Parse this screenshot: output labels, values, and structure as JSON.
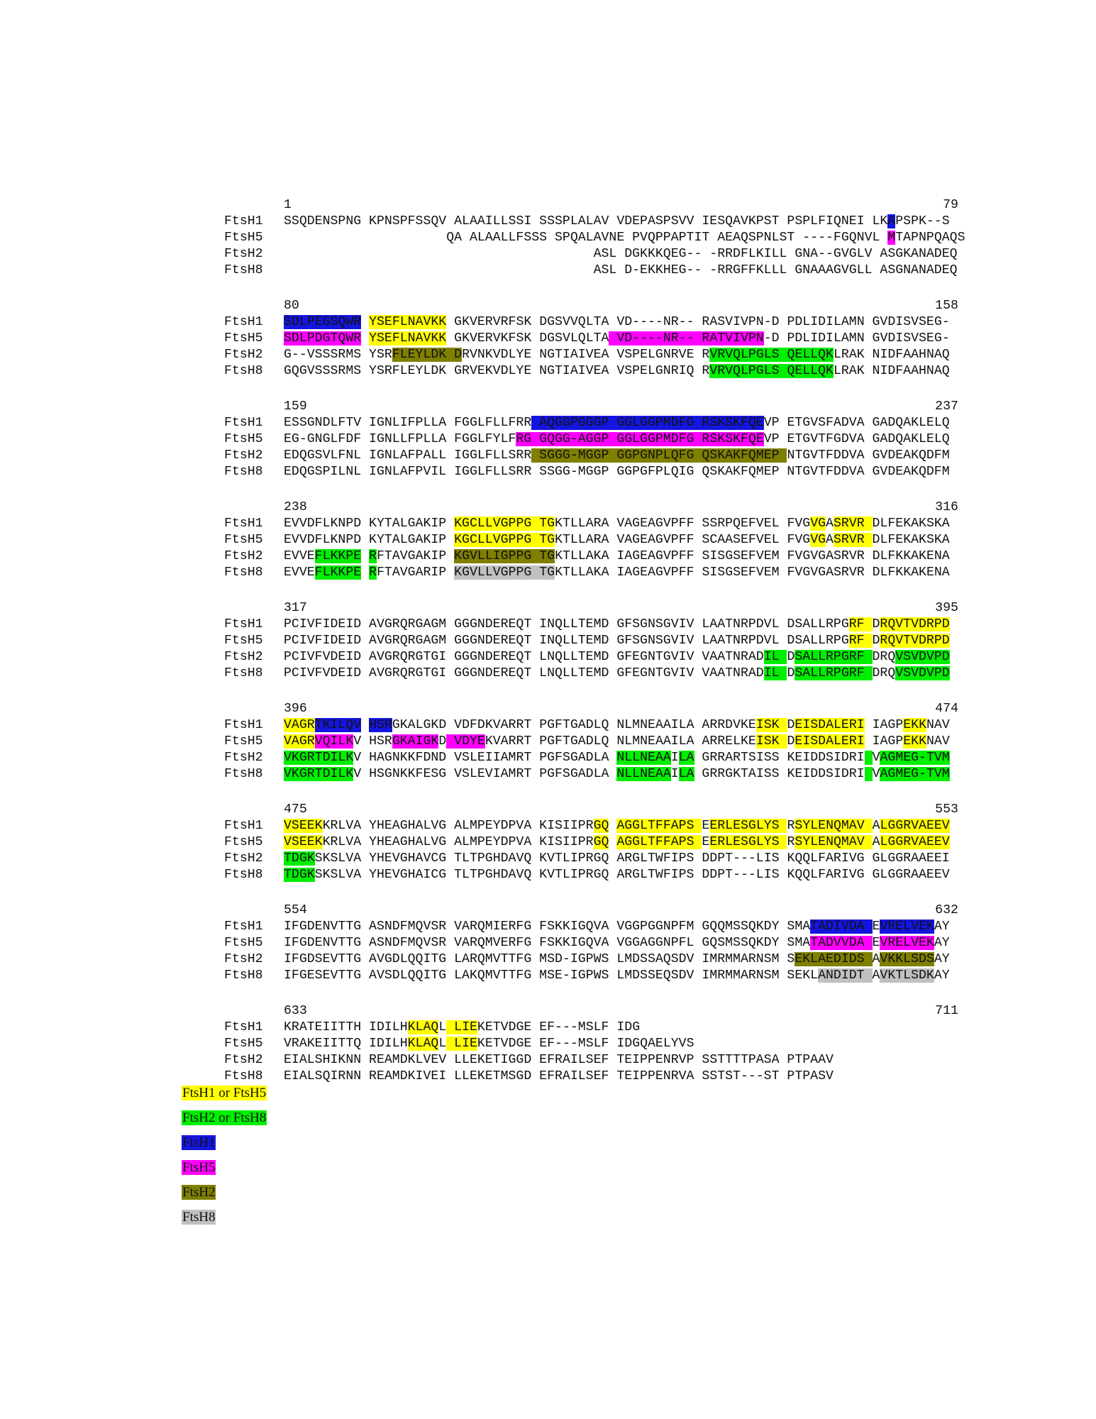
{
  "colors": {
    "h15": "#ffff00",
    "h28": "#00ee00",
    "h1": "#1515e0",
    "h5": "#ff00ff",
    "h2": "#7f7f00",
    "h8": "#c0c0c0"
  },
  "blocks": [
    {
      "start": "1",
      "end": "79",
      "rows": [
        {
          "name": "FtsH1",
          "seq": "SSQDENSPNG KPNSPFSSQV ALAAILLSSI SSSPLALAV VDEPASPSVV IESQAVKPST PSPLFIQNEI LKAPSPK--S"
        },
        {
          "name": "FtsH5",
          "seq": "                     QA ALAALLFSSS SPQALAVNE PVQPPAPTIT AEAQSPNLST ----FGQNVL MTAPNPQAQS"
        },
        {
          "name": "FtsH2",
          "seq": "                                        ASL DGKKKQEG-- -RRDFLKILL GNA--GVGLV ASGKANADEQ"
        },
        {
          "name": "FtsH8",
          "seq": "                                        ASL D-EKKHEG-- -RRGFFKLLL GNAAAGVGLL ASGNANADEQ"
        }
      ]
    },
    {
      "start": "80",
      "end": "158",
      "rows": [
        {
          "name": "FtsH1",
          "seq": "SDLPEGSQWR YSEFLNAVKK GKVERVRFSK DGSVVQLTA VD----NR-- RASVIVPN-D PDLIDILAMN GVDISVSEG-"
        },
        {
          "name": "FtsH5",
          "seq": "SDLPDGTQWR YSEFLNAVKK GKVERVKFSK DGSVLQLTA VD----NR-- RATVIVPN-D PDLIDILAMN GVDISVSEG-"
        },
        {
          "name": "FtsH2",
          "seq": "G--VSSSRMS YSRFLEYLDK DRVNKVDLYE NGTIAIVEA VSPELGNRVE RVRVQLPGLS QELLQKLRAK NIDFAAHNAQ"
        },
        {
          "name": "FtsH8",
          "seq": "GQGVSSSRMS YSRFLEYLDK GRVEKVDLYE NGTIAIVEA VSPELGNRIQ RVRVQLPGLS QELLQKLRAK NIDFAAHNAQ"
        }
      ]
    },
    {
      "start": "159",
      "end": "237",
      "rows": [
        {
          "name": "FtsH1",
          "seq": "ESSGNDLFTV IGNLIFPLLA FGGLFLLFRR AQGGPGGGP GGLGGPMDFG RSKSKFQEVP ETGVSFADVA GADQAKLELQ"
        },
        {
          "name": "FtsH5",
          "seq": "EG-GNGLFDF IGNLLFPLLA FGGLFYLFRG GQGG-AGGP GGLGGPMDFG RSKSKFQEVP ETGVTFGDVA GADQAKLELQ"
        },
        {
          "name": "FtsH2",
          "seq": "EDQGSVLFNL IGNLAFPALL IGGLFLLSRR SGGG-MGGP GGPGNPLQFG QSKAKFQMEP NTGVTFDDVA GVDEAKQDFM"
        },
        {
          "name": "FtsH8",
          "seq": "EDQGSPILNL IGNLAFPVIL IGGLFLLSRR SSGG-MGGP GGPGFPLQIG QSKAKFQMEP NTGVTFDDVA GVDEAKQDFM"
        }
      ]
    },
    {
      "start": "238",
      "end": "316",
      "rows": [
        {
          "name": "FtsH1",
          "seq": "EVVDFLKNPD KYTALGAKIP KGCLLVGPPG TGKTLLARA VAGEAGVPFF SSRPQEFVEL FVGVGASRVR DLFEKAKSKA"
        },
        {
          "name": "FtsH5",
          "seq": "EVVDFLKNPD KYTALGAKIP KGCLLVGPPG TGKTLLARA VAGEAGVPFF SCAASEFVEL FVGVGASRVR DLFEKAKSKA"
        },
        {
          "name": "FtsH2",
          "seq": "EVVEFLKKPE RFTAVGAKIP KGVLLIGPPG TGKTLLAKA IAGEAGVPFF SISGSEFVEM FVGVGASRVR DLFKKAKENA"
        },
        {
          "name": "FtsH8",
          "seq": "EVVEFLKKPE RFTAVGARIP KGVLLVGPPG TGKTLLAKA IAGEAGVPFF SISGSEFVEM FVGVGASRVR DLFKKAKENA"
        }
      ]
    },
    {
      "start": "317",
      "end": "395",
      "rows": [
        {
          "name": "FtsH1",
          "seq": "PCIVFIDEID AVGRQRGAGM GGGNDEREQT INQLLTEMD GFSGNSGVIV LAATNRPDVL DSALLRPGRF DRQVTVDRPD"
        },
        {
          "name": "FtsH5",
          "seq": "PCIVFIDEID AVGRQRGAGM GGGNDEREQT INQLLTEMD GFSGNSGVIV LAATNRPDVL DSALLRPGRF DRQVTVDRPD"
        },
        {
          "name": "FtsH2",
          "seq": "PCIVFVDEID AVGRQRGTGI GGGNDEREQT LNQLLTEMD GFEGNTGVIV VAATNRADIL DSALLRPGRF DRQVSVDVPD"
        },
        {
          "name": "FtsH8",
          "seq": "PCIVFVDEID AVGRQRGTGI GGGNDEREQT LNQLLTEMD GFEGNTGVIV VAATNRADIL DSALLRPGRF DRQVSVDVPD"
        }
      ]
    },
    {
      "start": "396",
      "end": "474",
      "rows": [
        {
          "name": "FtsH1",
          "seq": "VAGRTKILQV HSRGKALGKD VDFDKVARRT PGFTGADLQ NLMNEAAILA ARRDVKEISK DEISDALERI IAGPEKKNAV"
        },
        {
          "name": "FtsH5",
          "seq": "VAGRVQILKV HSRGKAIGKD VDYEKVARRT PGFTGADLQ NLMNEAAILA ARRELKEISK DEISDALERI IAGPEKKNAV"
        },
        {
          "name": "FtsH2",
          "seq": "VKGRTDILKV HAGNKKFDND VSLEIIAMRT PGFSGADLA NLLNEAAILA GRRARTSISS KEIDDSIDRI VAGMEG-TVM"
        },
        {
          "name": "FtsH8",
          "seq": "VKGRTDILKV HSGNKKFESG VSLEVIAMRT PGFSGADLA NLLNEAAILA GRRGKTAISS KEIDDSIDRI VAGMEG-TVM"
        }
      ]
    },
    {
      "start": "475",
      "end": "553",
      "rows": [
        {
          "name": "FtsH1",
          "seq": "VSEEKKRLVA YHEAGHALVG ALMPEYDPVA KISIIPRGQ AGGLTFFAPS EERLESGLYS RSYLENQMAV ALGGRVAEEV"
        },
        {
          "name": "FtsH5",
          "seq": "VSEEKKRLVA YHEAGHALVG ALMPEYDPVA KISIIPRGQ AGGLTFFAPS EERLESGLYS RSYLENQMAV ALGGRVAEEV"
        },
        {
          "name": "FtsH2",
          "seq": "TDGKSKSLVA YHEVGHAVCG TLTPGHDAVQ KVTLIPRGQ ARGLTWFIPS DDPT---LIS KQQLFARIVG GLGGRAAEEI"
        },
        {
          "name": "FtsH8",
          "seq": "TDGKSKSLVA YHEVGHAICG TLTPGHDAVQ KVTLIPRGQ ARGLTWFIPS DDPT---LIS KQQLFARIVG GLGGRAAEEV"
        }
      ]
    },
    {
      "start": "554",
      "end": "632",
      "rows": [
        {
          "name": "FtsH1",
          "seq": "IFGDENVTTG ASNDFMQVSR VARQMIERFG FSKKIGQVA VGGPGGNPFM GQQMSSQKDY SMATADIVDA EVRELVEKAY"
        },
        {
          "name": "FtsH5",
          "seq": "IFGDENVTTG ASNDFMQVSR VARQMVERFG FSKKIGQVA VGGAGGNPFL GQSMSSQKDY SMATADVVDA EVRELVEKAY"
        },
        {
          "name": "FtsH2",
          "seq": "IFGDSEVTTG AVGDLQQITG LARQMVTTFG MSD-IGPWS LMDSSAQSDV IMRMMARNSM SEKLAEDIDS AVKKLSDSAY"
        },
        {
          "name": "FtsH8",
          "seq": "IFGESEVTTG AVSDLQQITG LAKQMVTTFG MSE-IGPWS LMDSSEQSDV IMRMMARNSM SEKLANDIDT AVKTLSDKAY"
        }
      ]
    },
    {
      "start": "633",
      "end": "711",
      "rows": [
        {
          "name": "FtsH1",
          "seq": "KRATEIITTH IDILHKLAQL LIEKETVDGE EF---MSLF IDG"
        },
        {
          "name": "FtsH5",
          "seq": "VRAKEIITTQ IDILHKLAQL LIEKETVDGE EF---MSLF IDGQAELYVS"
        },
        {
          "name": "FtsH2",
          "seq": "EIALSHIKNN REAMDKLVEV LLEKETIGGD EFRAILSEF TEIPPENRVP SSTTTTPASA PTPAAV"
        },
        {
          "name": "FtsH8",
          "seq": "EIALSQIRNN REAMDKIVEI LLEKETMSGD EFRAILSEF TEIPPENRVA SSTST---ST PTPASV"
        }
      ]
    }
  ],
  "highlights": {
    "0": {
      "0": [
        [
          78,
          79,
          "h1"
        ]
      ],
      "1": [
        [
          78,
          79,
          "h5"
        ]
      ]
    },
    "1": {
      "0": [
        [
          0,
          10,
          "h1"
        ],
        [
          11,
          21,
          "h15"
        ]
      ],
      "1": [
        [
          0,
          10,
          "h5"
        ],
        [
          11,
          21,
          "h15"
        ],
        [
          42,
          62,
          "h5"
        ]
      ],
      "2": [
        [
          14,
          21,
          "h2"
        ],
        [
          21,
          23,
          "h2"
        ],
        [
          55,
          65,
          "h28"
        ],
        [
          65,
          71,
          "h28"
        ]
      ],
      "3": [
        [
          55,
          65,
          "h28"
        ],
        [
          65,
          71,
          "h28"
        ]
      ]
    },
    "2": {
      "0": [
        [
          32,
          62,
          "h1"
        ]
      ],
      "1": [
        [
          30,
          62,
          "h5"
        ]
      ],
      "2": [
        [
          32,
          65,
          "h2"
        ]
      ]
    },
    "3": {
      "0": [
        [
          22,
          32,
          "h15"
        ],
        [
          32,
          35,
          "h15"
        ],
        [
          68,
          69,
          "h15"
        ],
        [
          69,
          70,
          "h15"
        ],
        [
          71,
          76,
          "h15"
        ]
      ],
      "1": [
        [
          22,
          32,
          "h15"
        ],
        [
          32,
          35,
          "h15"
        ],
        [
          68,
          69,
          "h15"
        ],
        [
          69,
          70,
          "h15"
        ],
        [
          71,
          76,
          "h15"
        ]
      ],
      "2": [
        [
          4,
          10,
          "h28"
        ],
        [
          11,
          12,
          "h28"
        ],
        [
          22,
          32,
          "h2"
        ],
        [
          32,
          35,
          "h2"
        ]
      ],
      "3": [
        [
          4,
          10,
          "h28"
        ],
        [
          11,
          12,
          "h28"
        ],
        [
          22,
          32,
          "h8"
        ],
        [
          32,
          35,
          "h8"
        ]
      ]
    },
    "4": {
      "0": [
        [
          73,
          76,
          "h15"
        ],
        [
          77,
          87,
          "h15"
        ]
      ],
      "1": [
        [
          73,
          76,
          "h15"
        ],
        [
          77,
          87,
          "h15"
        ]
      ],
      "2": [
        [
          62,
          65,
          "h28"
        ],
        [
          66,
          76,
          "h28"
        ],
        [
          79,
          82,
          "h28"
        ],
        [
          82,
          87,
          "h28"
        ]
      ],
      "3": [
        [
          62,
          65,
          "h28"
        ],
        [
          66,
          76,
          "h28"
        ],
        [
          79,
          82,
          "h28"
        ],
        [
          82,
          87,
          "h28"
        ]
      ]
    },
    "5": {
      "0": [
        [
          0,
          4,
          "h15"
        ],
        [
          4,
          10,
          "h1"
        ],
        [
          11,
          14,
          "h1"
        ],
        [
          61,
          65,
          "h15"
        ],
        [
          66,
          75,
          "h15"
        ],
        [
          80,
          83,
          "h15"
        ]
      ],
      "1": [
        [
          0,
          4,
          "h15"
        ],
        [
          4,
          9,
          "h5"
        ],
        [
          14,
          20,
          "h5"
        ],
        [
          21,
          26,
          "h5"
        ],
        [
          61,
          65,
          "h15"
        ],
        [
          66,
          75,
          "h15"
        ],
        [
          80,
          83,
          "h15"
        ]
      ],
      "2": [
        [
          0,
          2,
          "h28"
        ],
        [
          2,
          9,
          "h28"
        ],
        [
          43,
          50,
          "h28"
        ],
        [
          51,
          53,
          "h28"
        ],
        [
          75,
          76,
          "h28"
        ],
        [
          77,
          87,
          "h28"
        ]
      ],
      "3": [
        [
          0,
          2,
          "h28"
        ],
        [
          2,
          9,
          "h28"
        ],
        [
          43,
          50,
          "h28"
        ],
        [
          51,
          53,
          "h28"
        ],
        [
          75,
          76,
          "h28"
        ],
        [
          77,
          87,
          "h28"
        ]
      ]
    },
    "6": {
      "0": [
        [
          0,
          5,
          "h15"
        ],
        [
          40,
          42,
          "h15"
        ],
        [
          43,
          54,
          "h15"
        ],
        [
          55,
          65,
          "h15"
        ],
        [
          66,
          76,
          "h15"
        ],
        [
          77,
          87,
          "h15"
        ]
      ],
      "1": [
        [
          0,
          5,
          "h15"
        ],
        [
          40,
          42,
          "h15"
        ],
        [
          43,
          54,
          "h15"
        ],
        [
          55,
          65,
          "h15"
        ],
        [
          66,
          76,
          "h15"
        ],
        [
          77,
          87,
          "h15"
        ]
      ],
      "2": [
        [
          0,
          4,
          "h28"
        ]
      ],
      "3": [
        [
          0,
          4,
          "h28"
        ]
      ]
    },
    "7": {
      "0": [
        [
          68,
          76,
          "h1"
        ],
        [
          77,
          84,
          "h1"
        ]
      ],
      "1": [
        [
          68,
          76,
          "h5"
        ],
        [
          77,
          84,
          "h5"
        ]
      ],
      "2": [
        [
          66,
          76,
          "h2"
        ],
        [
          77,
          84,
          "h2"
        ]
      ],
      "3": [
        [
          69,
          76,
          "h8"
        ],
        [
          77,
          84,
          "h8"
        ]
      ]
    },
    "8": {
      "0": [
        [
          16,
          20,
          "h15"
        ],
        [
          21,
          25,
          "h15"
        ]
      ],
      "1": [
        [
          16,
          20,
          "h15"
        ],
        [
          21,
          25,
          "h15"
        ]
      ]
    }
  },
  "legend": [
    {
      "label": "FtsH1 or FtsH5",
      "color": "h15",
      "text": "#111111"
    },
    {
      "label": "FtsH2 or FtsH8",
      "color": "h28",
      "text": "#111111"
    },
    {
      "label": "FtsH1",
      "color": "h1",
      "text": "#111111"
    },
    {
      "label": "FtsH5",
      "color": "h5",
      "text": "#111111"
    },
    {
      "label": "FtsH2",
      "color": "h2",
      "text": "#111111"
    },
    {
      "label": "FtsH8",
      "color": "h8",
      "text": "#111111"
    }
  ]
}
